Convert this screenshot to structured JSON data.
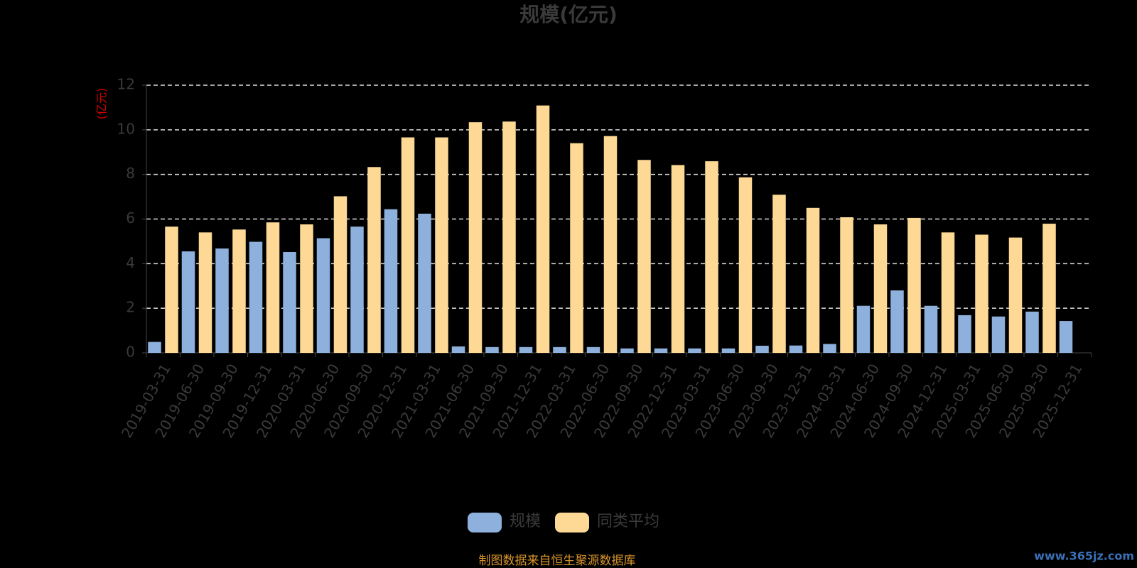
{
  "chart_data": {
    "type": "bar",
    "title": "规模(亿元)",
    "y_axis_label": "(亿元)",
    "categories": [
      "2019-03-31",
      "2019-06-30",
      "2019-09-30",
      "2019-12-31",
      "2020-03-31",
      "2020-06-30",
      "2020-09-30",
      "2020-12-31",
      "2021-03-31",
      "2021-06-30",
      "2021-09-30",
      "2021-12-31",
      "2022-03-31",
      "2022-06-30",
      "2022-09-30",
      "2022-12-31",
      "2023-03-31",
      "2023-06-30",
      "2023-09-30",
      "2023-12-31",
      "2024-03-31",
      "2024-06-30",
      "2024-09-30",
      "2024-12-31",
      "2025-03-31",
      "2025-06-30",
      "2025-09-30",
      "2025-12-31"
    ],
    "series": [
      {
        "name": "规模",
        "color": "#8eb0dc",
        "values": [
          0.49,
          4.55,
          4.68,
          4.98,
          4.52,
          5.14,
          5.66,
          6.44,
          6.24,
          0.29,
          0.26,
          0.26,
          0.26,
          0.26,
          0.2,
          0.2,
          0.2,
          0.2,
          0.32,
          0.33,
          0.4,
          2.11,
          2.8,
          2.11,
          1.69,
          1.63,
          1.85,
          1.43
        ]
      },
      {
        "name": "同类平均",
        "color": "#fdd995",
        "values": [
          5.66,
          5.4,
          5.53,
          5.85,
          5.76,
          7.02,
          8.33,
          9.66,
          9.66,
          10.34,
          10.37,
          11.09,
          9.4,
          9.72,
          8.65,
          8.42,
          8.59,
          7.87,
          7.09,
          6.5,
          6.08,
          5.76,
          6.05,
          5.4,
          5.3,
          5.17,
          5.79,
          null
        ]
      }
    ],
    "ylim": [
      0,
      12
    ],
    "yticks": [
      0,
      2,
      4,
      6,
      8,
      10,
      12
    ],
    "grid": true,
    "footer": "制图数据来自恒生聚源数据库",
    "watermark": "www.365jz.com"
  }
}
